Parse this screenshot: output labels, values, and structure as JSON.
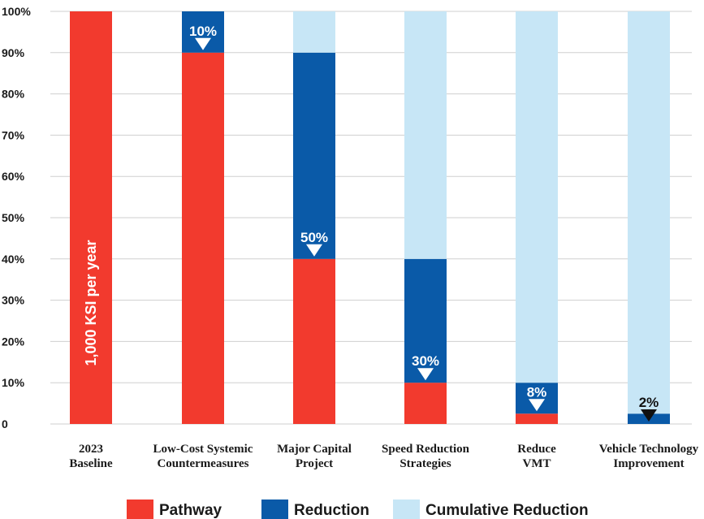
{
  "chart_data": {
    "type": "bar",
    "stacked": true,
    "categories": [
      [
        "2023",
        "Baseline"
      ],
      [
        "Low-Cost Systemic",
        "Countermeasures"
      ],
      [
        "Major Capital",
        "Project"
      ],
      [
        "Speed Reduction",
        "Strategies"
      ],
      [
        "Reduce",
        "VMT"
      ],
      [
        "Vehicle Technology",
        "Improvement"
      ]
    ],
    "series": [
      {
        "name": "Pathway",
        "color": "#f23a2e",
        "values": [
          100,
          90,
          40,
          10,
          2.5,
          0
        ]
      },
      {
        "name": "Reduction",
        "color": "#0a5aa8",
        "values": [
          0,
          10,
          50,
          30,
          7.5,
          2.5
        ]
      },
      {
        "name": "Cumulative Reduction",
        "color": "#c7e6f6",
        "values": [
          0,
          0,
          10,
          60,
          90,
          97.5
        ]
      }
    ],
    "reduction_labels": [
      "",
      "10%",
      "50%",
      "30%",
      "8%",
      "2%"
    ],
    "reduction_label_colors": [
      "",
      "#ffffff",
      "#ffffff",
      "#ffffff",
      "#ffffff",
      "#111111"
    ],
    "bar_annotation": "1,000 KSI per year",
    "yticks": [
      {
        "value": 0,
        "label": "0"
      },
      {
        "value": 10,
        "label": "10%"
      },
      {
        "value": 20,
        "label": "20%"
      },
      {
        "value": 30,
        "label": "30%"
      },
      {
        "value": 40,
        "label": "40%"
      },
      {
        "value": 50,
        "label": "50%"
      },
      {
        "value": 60,
        "label": "60%"
      },
      {
        "value": 70,
        "label": "70%"
      },
      {
        "value": 80,
        "label": "80%"
      },
      {
        "value": 90,
        "label": "90%"
      },
      {
        "value": 100,
        "label": "100%"
      }
    ],
    "ylim": [
      0,
      100
    ],
    "grid": true,
    "legend_position": "bottom"
  }
}
